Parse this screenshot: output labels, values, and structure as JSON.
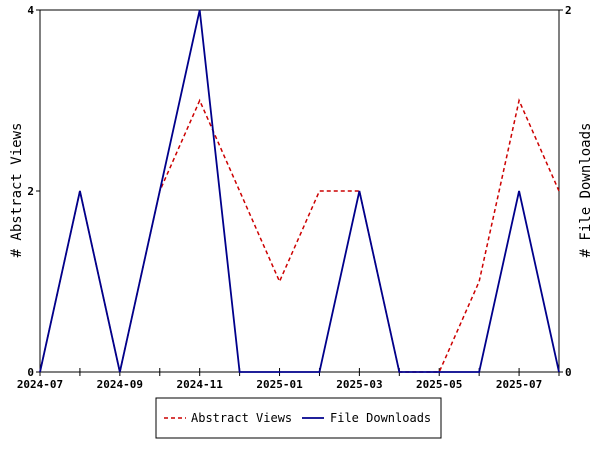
{
  "chart_data": {
    "type": "line",
    "x": [
      "2024-07",
      "2024-08",
      "2024-09",
      "2024-10",
      "2024-11",
      "2024-12",
      "2025-01",
      "2025-02",
      "2025-03",
      "2025-04",
      "2025-05",
      "2025-06",
      "2025-07",
      "2025-08"
    ],
    "x_tick_labels": [
      "2024-07",
      "2024-09",
      "2024-11",
      "2025-01",
      "2025-03",
      "2025-05",
      "2025-07"
    ],
    "y_left": {
      "label": "# Abstract Views",
      "ylim": [
        0,
        4
      ],
      "ticks": [
        "0",
        "2",
        "4"
      ]
    },
    "y_right": {
      "label": "# File Downloads",
      "ylim": [
        0,
        2
      ],
      "ticks": [
        "0",
        "2"
      ]
    },
    "series": [
      {
        "name": "Abstract Views",
        "axis": "left",
        "style": "dashed",
        "color": "#cc0000",
        "values": [
          0,
          2,
          0,
          2,
          3,
          2,
          1,
          2,
          2,
          0,
          0,
          1,
          3,
          2
        ]
      },
      {
        "name": "File Downloads",
        "axis": "right",
        "style": "solid",
        "color": "#00008b",
        "values": [
          0,
          1,
          0,
          1,
          2,
          0,
          0,
          0,
          1,
          0,
          0,
          0,
          1,
          0
        ]
      }
    ],
    "legend_position": "bottom-center",
    "grid": false
  }
}
